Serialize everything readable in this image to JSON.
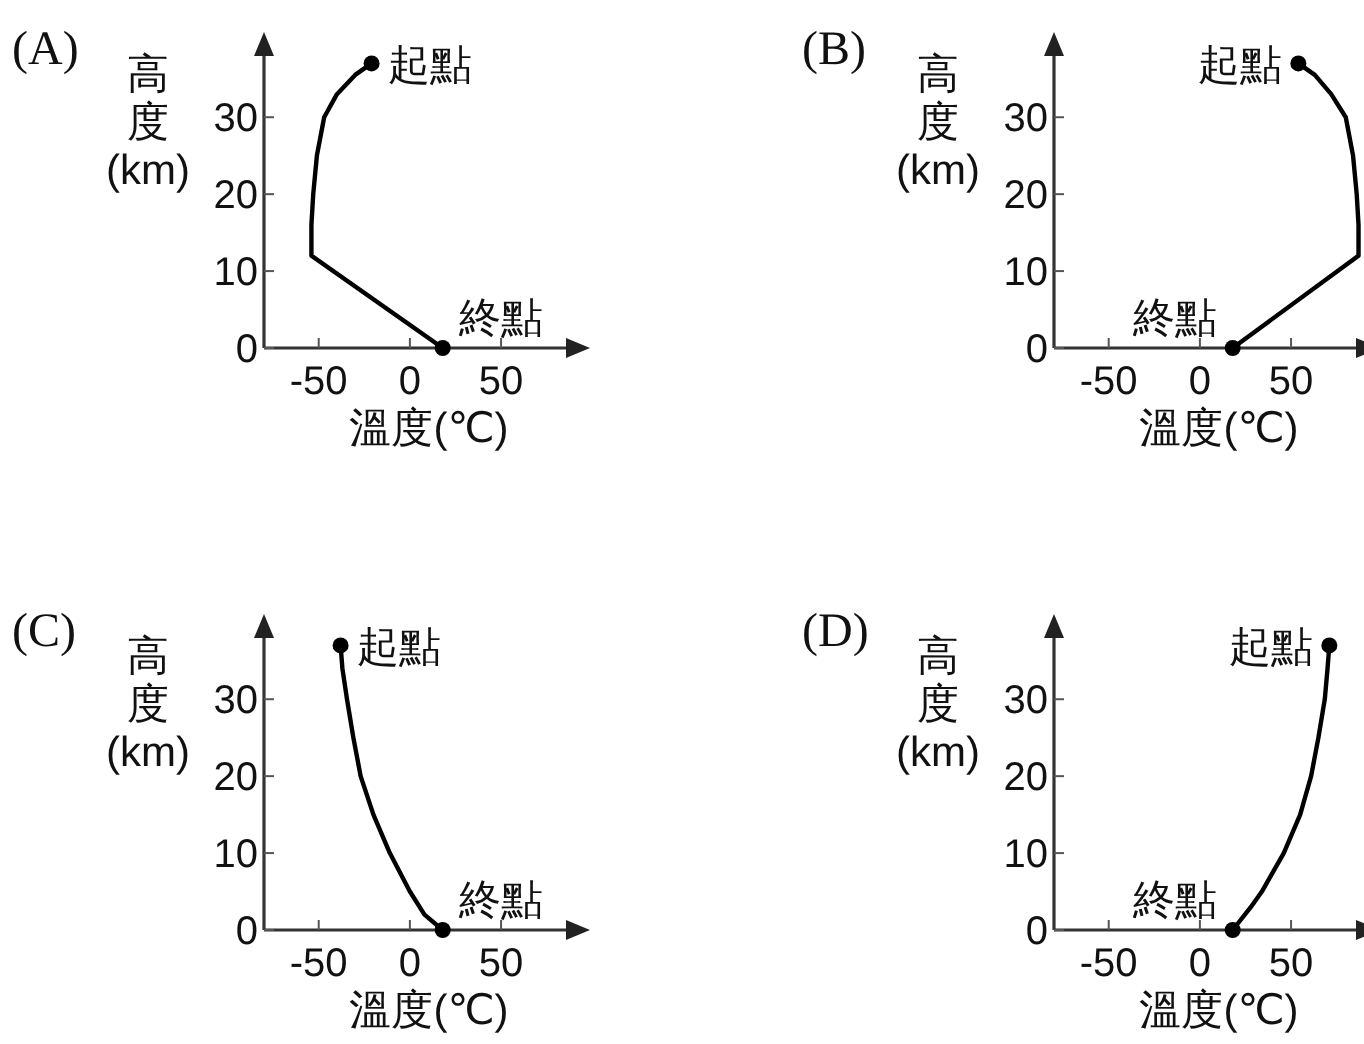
{
  "chart_data": [
    {
      "type": "line",
      "title": "(A)",
      "xlabel": "溫度(℃)",
      "ylabel": "高度(km)",
      "xlim": [
        -80,
        90
      ],
      "ylim": [
        0,
        39
      ],
      "xticks": [
        -50,
        0,
        50
      ],
      "yticks": [
        0,
        10,
        20,
        30
      ],
      "grid": false,
      "series": [
        {
          "type": "line",
          "color": "#000000",
          "marker": "none",
          "x": [
            18,
            -54,
            -54,
            -53,
            -51,
            -47,
            -40,
            -30,
            -21
          ],
          "values": [
            0,
            12,
            16,
            20,
            25,
            30,
            33,
            35.5,
            37
          ]
        },
        {
          "type": "scatter",
          "color": "#000000",
          "marker": "circle",
          "x": [
            -21,
            18
          ],
          "values": [
            37,
            0
          ]
        }
      ],
      "annotations": [
        {
          "text": "起點",
          "x": -21,
          "y": 37
        },
        {
          "text": "終點",
          "x": 18,
          "y": 0
        }
      ]
    },
    {
      "type": "line",
      "title": "(B)",
      "xlabel": "溫度(℃)",
      "ylabel": "高度(km)",
      "xlim": [
        -80,
        90
      ],
      "ylim": [
        0,
        39
      ],
      "xticks": [
        -50,
        0,
        50
      ],
      "yticks": [
        0,
        10,
        20,
        30
      ],
      "grid": false,
      "series": [
        {
          "type": "line",
          "color": "#000000",
          "marker": "none",
          "x": [
            18,
            87,
            87,
            86,
            84,
            80,
            72,
            63,
            54
          ],
          "values": [
            0,
            12,
            16,
            20,
            25,
            30,
            33,
            35.5,
            37
          ]
        },
        {
          "type": "scatter",
          "color": "#000000",
          "marker": "circle",
          "x": [
            54,
            18
          ],
          "values": [
            37,
            0
          ]
        }
      ],
      "annotations": [
        {
          "text": "起點",
          "x": 54,
          "y": 37
        },
        {
          "text": "終點",
          "x": 18,
          "y": 0
        }
      ]
    },
    {
      "type": "line",
      "title": "(C)",
      "xlabel": "溫度(℃)",
      "ylabel": "高度(km)",
      "xlim": [
        -80,
        90
      ],
      "ylim": [
        0,
        39
      ],
      "xticks": [
        -50,
        0,
        50
      ],
      "yticks": [
        0,
        10,
        20,
        30
      ],
      "grid": false,
      "series": [
        {
          "type": "line",
          "color": "#000000",
          "marker": "none",
          "x": [
            18,
            8,
            0,
            -11,
            -20,
            -27,
            -31,
            -34.5,
            -37,
            -38
          ],
          "values": [
            0,
            2,
            5,
            10,
            15,
            20,
            25,
            30,
            34,
            37
          ]
        },
        {
          "type": "scatter",
          "color": "#000000",
          "marker": "circle",
          "x": [
            -38,
            18
          ],
          "values": [
            37,
            0
          ]
        }
      ],
      "annotations": [
        {
          "text": "起點",
          "x": -38,
          "y": 37
        },
        {
          "text": "終點",
          "x": 18,
          "y": 0
        }
      ]
    },
    {
      "type": "line",
      "title": "(D)",
      "xlabel": "溫度(℃)",
      "ylabel": "高度(km)",
      "xlim": [
        -80,
        90
      ],
      "ylim": [
        0,
        39
      ],
      "xticks": [
        -50,
        0,
        50
      ],
      "yticks": [
        0,
        10,
        20,
        30
      ],
      "grid": false,
      "series": [
        {
          "type": "line",
          "color": "#000000",
          "marker": "none",
          "x": [
            18,
            28,
            34,
            46,
            55,
            61,
            65,
            68.5,
            70,
            71
          ],
          "values": [
            0,
            3,
            5,
            10,
            15,
            20,
            25,
            30,
            34,
            37
          ]
        },
        {
          "type": "scatter",
          "color": "#000000",
          "marker": "circle",
          "x": [
            71,
            18
          ],
          "values": [
            37,
            0
          ]
        }
      ],
      "annotations": [
        {
          "text": "起點",
          "x": 71,
          "y": 37
        },
        {
          "text": "終點",
          "x": 18,
          "y": 0
        }
      ]
    }
  ]
}
